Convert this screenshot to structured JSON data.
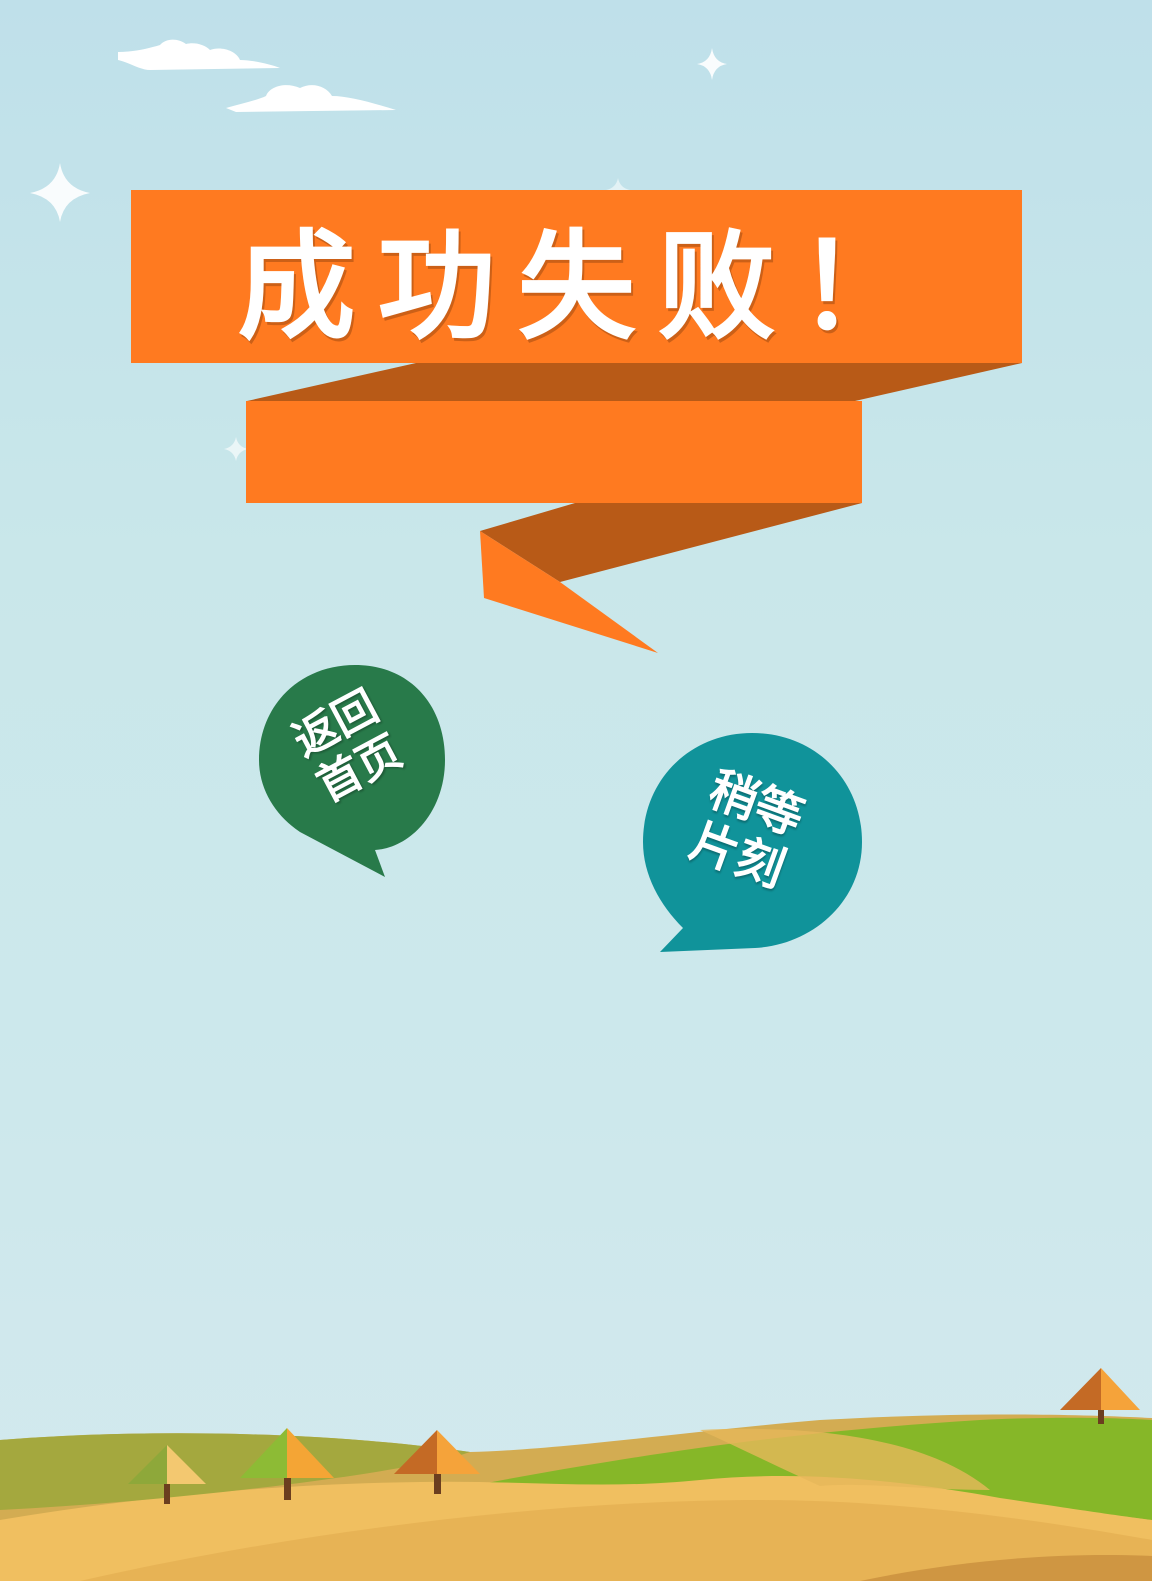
{
  "banner": {
    "title": "成功失败！"
  },
  "buttons": {
    "home": {
      "line1": "返回",
      "line2": "首页"
    },
    "wait": {
      "line1": "稍等",
      "line2": "片刻"
    }
  },
  "colors": {
    "sky_top": "#bfe0ea",
    "ribbon_orange": "#ff7a20",
    "ribbon_shadow": "#b85a17",
    "home_bubble": "#287a4a",
    "wait_bubble": "#10939a",
    "hill_green": "#86b728",
    "hill_tan": "#d3ac52",
    "hill_yellow": "#f0bf60"
  }
}
